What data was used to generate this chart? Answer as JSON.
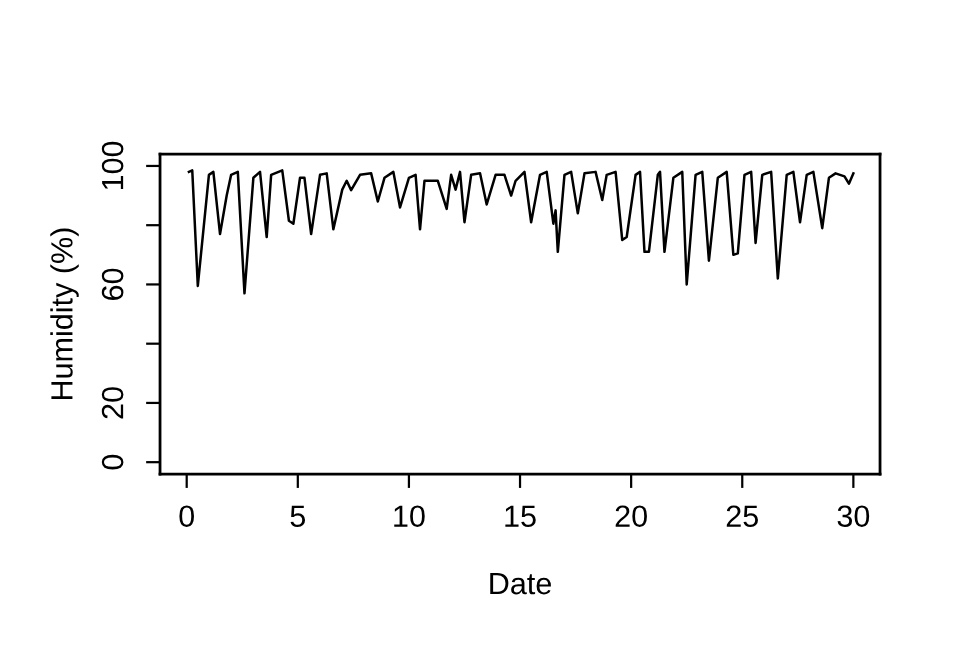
{
  "chart_data": {
    "type": "line",
    "xlabel": "Date",
    "ylabel": "Humidity (%)",
    "xlim": [
      -1.2,
      31.2
    ],
    "ylim": [
      -4,
      104
    ],
    "xticks": [
      0,
      5,
      10,
      15,
      20,
      25,
      30
    ],
    "yticks": [
      0,
      20,
      {
        "value": 40,
        "label": null
      },
      60,
      {
        "value": 80,
        "label": null
      },
      100
    ],
    "grid": false,
    "marker": "none",
    "line_style": "solid",
    "series": [
      {
        "color": "#000000",
        "x": [
          0.1,
          0.25,
          0.5,
          1.0,
          1.2,
          1.5,
          1.8,
          2.0,
          2.3,
          2.6,
          3.0,
          3.3,
          3.6,
          3.8,
          4.3,
          4.6,
          4.8,
          5.1,
          5.3,
          5.6,
          6.0,
          6.3,
          6.6,
          7.0,
          7.2,
          7.4,
          7.8,
          8.3,
          8.6,
          8.9,
          9.3,
          9.6,
          10.0,
          10.3,
          10.5,
          10.7,
          11.3,
          11.7,
          11.9,
          12.1,
          12.3,
          12.5,
          12.8,
          13.2,
          13.5,
          13.9,
          14.3,
          14.6,
          14.8,
          15.2,
          15.5,
          15.9,
          16.2,
          16.5,
          16.6,
          16.7,
          17.0,
          17.3,
          17.6,
          17.9,
          18.4,
          18.7,
          18.9,
          19.3,
          19.6,
          19.8,
          20.2,
          20.4,
          20.6,
          20.8,
          21.2,
          21.3,
          21.5,
          21.9,
          22.3,
          22.5,
          22.9,
          23.2,
          23.5,
          23.9,
          24.3,
          24.6,
          24.8,
          25.1,
          25.4,
          25.6,
          25.9,
          26.3,
          26.6,
          27.0,
          27.3,
          27.6,
          27.9,
          28.2,
          28.6,
          28.9,
          29.2,
          29.6,
          29.8,
          30.0
        ],
        "values": [
          98,
          98.5,
          59.5,
          97,
          98,
          77,
          90,
          97,
          98,
          57,
          96,
          98,
          76,
          97,
          98.5,
          81.5,
          80.5,
          96,
          96,
          77,
          97,
          97.5,
          78.6,
          92,
          95,
          91.8,
          97,
          97.5,
          88,
          96,
          98,
          86,
          96,
          97,
          78.6,
          95,
          95,
          85.5,
          97,
          92,
          98,
          81,
          97,
          97.5,
          87,
          97,
          97,
          90,
          95,
          98,
          81,
          97,
          98,
          80.5,
          85,
          71,
          97,
          98,
          84,
          97.5,
          98,
          88.5,
          97,
          98,
          75,
          76,
          97,
          98,
          71,
          71,
          97,
          98,
          71,
          96,
          98,
          60,
          97,
          98,
          68,
          96,
          98,
          70,
          70.5,
          97,
          98,
          74,
          97,
          98,
          62,
          97,
          98,
          81,
          97,
          98,
          79,
          96,
          97.5,
          96.5,
          94,
          97.5
        ]
      }
    ]
  }
}
